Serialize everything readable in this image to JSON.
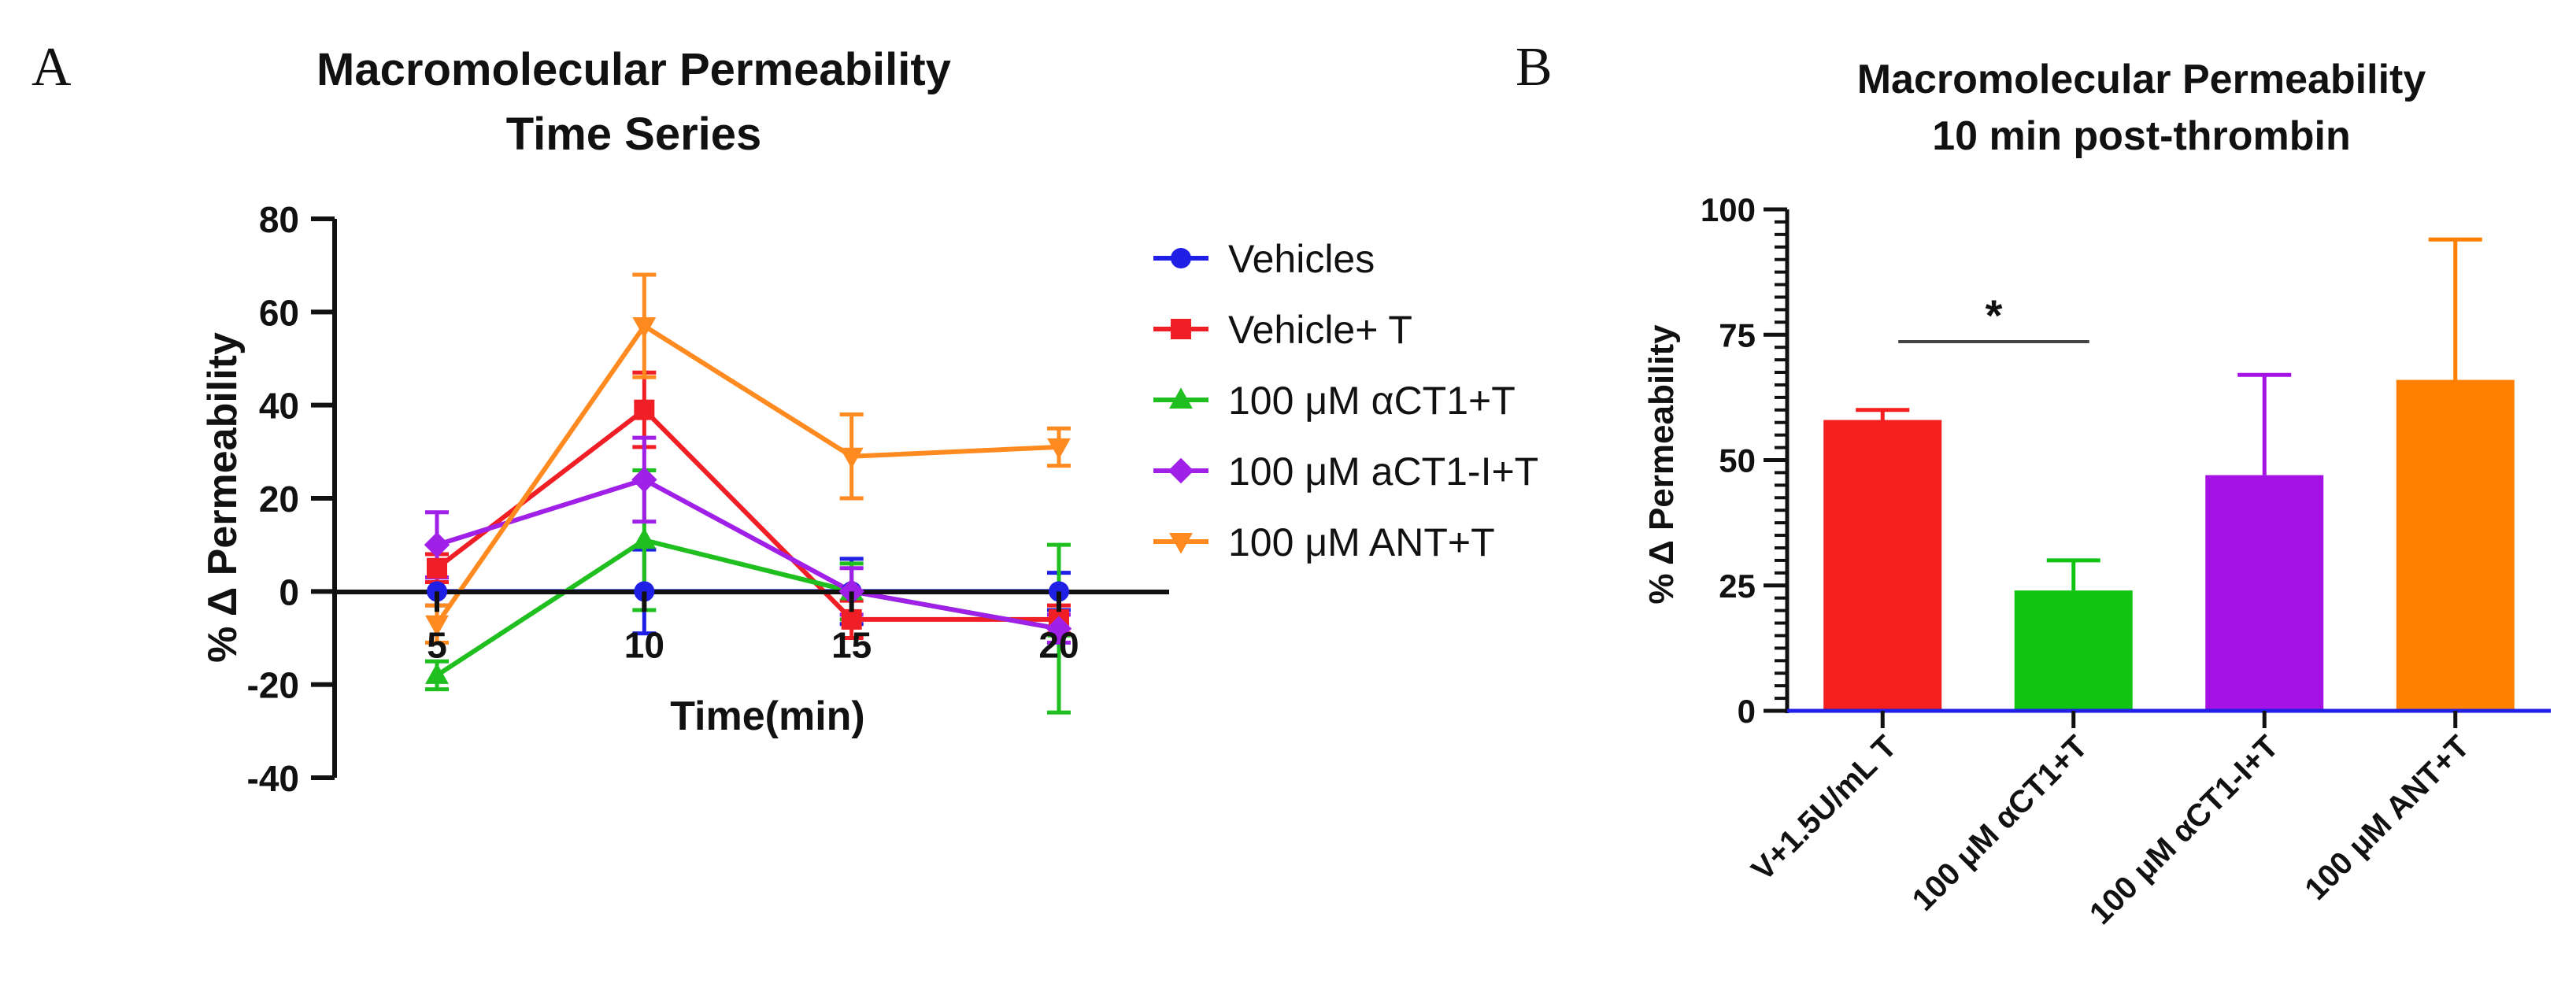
{
  "chart_data": [
    {
      "type": "line",
      "panel_label": "A",
      "title_lines": [
        "Macromolecular Permeability",
        "Time Series"
      ],
      "xlabel": "Time(min)",
      "ylabel": "% Δ Permeability",
      "x": [
        5,
        10,
        15,
        20
      ],
      "x_tick_labels": [
        "5",
        "10",
        "15",
        "20"
      ],
      "ylim": [
        -40,
        80
      ],
      "y_ticks": [
        -40,
        -20,
        0,
        20,
        40,
        60,
        80
      ],
      "y_tick_labels": [
        "-40",
        "-20",
        "0",
        "20",
        "40",
        "60",
        "80"
      ],
      "legend_position": "right",
      "series": [
        {
          "name": "Vehicles",
          "color": "#1f1fe6",
          "marker": "circle",
          "values": [
            0,
            0,
            0,
            0
          ],
          "errors": [
            3,
            9,
            7,
            4
          ]
        },
        {
          "name": "Vehicle+ T",
          "color": "#f01f26",
          "marker": "square",
          "values": [
            5,
            39,
            -6,
            -6
          ],
          "errors": [
            3,
            8,
            4,
            3
          ]
        },
        {
          "name": "100 μM αCT1+T",
          "color": "#1fbf1f",
          "marker": "triangle-up",
          "values": [
            -18,
            11,
            0,
            -8
          ],
          "errors": [
            3,
            15,
            6,
            18
          ]
        },
        {
          "name": "100 μM aCT1-I+T",
          "color": "#a020e8",
          "marker": "diamond",
          "values": [
            10,
            24,
            0,
            -8
          ],
          "errors": [
            7,
            9,
            5,
            3
          ]
        },
        {
          "name": "100 μM ANT+T",
          "color": "#ff8a1f",
          "marker": "triangle-down",
          "values": [
            -7,
            57,
            29,
            31
          ],
          "errors": [
            4,
            11,
            9,
            4
          ]
        }
      ]
    },
    {
      "type": "bar",
      "panel_label": "B",
      "title_lines": [
        "Macromolecular Permeability",
        "10 min post-thrombin"
      ],
      "xlabel": "",
      "ylabel": "% Δ Permeability",
      "categories": [
        "V+1.5U/mL T",
        "100 μM αCT1+T",
        "100 μM αCT1-I+T",
        "100 μM ANT+T"
      ],
      "values": [
        58,
        24,
        47,
        66
      ],
      "errors": [
        2,
        6,
        20,
        28
      ],
      "colors": [
        "#f51f1f",
        "#12c412",
        "#a512e6",
        "#ff8000"
      ],
      "ylim": [
        0,
        100
      ],
      "y_ticks": [
        0,
        25,
        50,
        75,
        100
      ],
      "y_tick_labels": [
        "0",
        "25",
        "50",
        "75",
        "100"
      ],
      "significance": {
        "label": "*",
        "from": 0,
        "to": 1
      }
    }
  ]
}
